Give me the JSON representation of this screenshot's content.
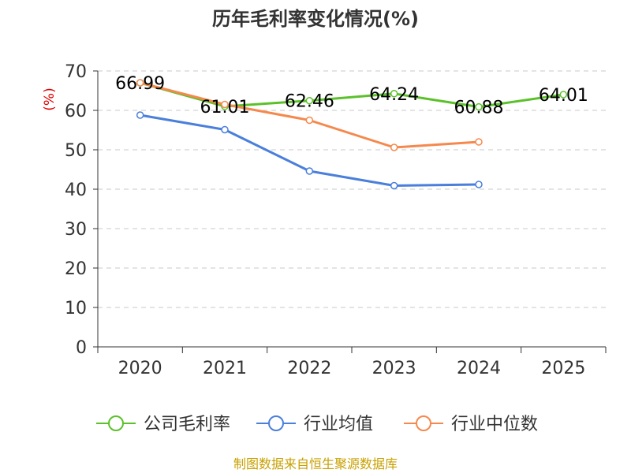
{
  "chart_data": {
    "type": "line",
    "title": "历年毛利率变化情况(%)",
    "ylabel": "(%)",
    "xlabel": "",
    "categories": [
      "2020",
      "2021",
      "2022",
      "2023",
      "2024",
      "2025"
    ],
    "ylim": [
      0,
      70
    ],
    "yticks": [
      0,
      10,
      20,
      30,
      40,
      50,
      60,
      70
    ],
    "grid": true,
    "legend_position": "bottom",
    "series": [
      {
        "name": "公司毛利率",
        "color": "#5bc12a",
        "values": [
          66.99,
          61.01,
          62.46,
          64.24,
          60.88,
          64.01
        ],
        "labels": [
          "66.99",
          "61.01",
          "62.46",
          "64.24",
          "60.88",
          "64.01"
        ]
      },
      {
        "name": "行业均值",
        "color": "#4a7fdc",
        "values": [
          58.8,
          55.1,
          44.6,
          40.9,
          41.2,
          null
        ]
      },
      {
        "name": "行业中位数",
        "color": "#f5894d",
        "values": [
          67.0,
          61.5,
          57.5,
          50.6,
          52.0,
          null
        ]
      }
    ],
    "source": "制图数据来自恒生聚源数据库"
  }
}
